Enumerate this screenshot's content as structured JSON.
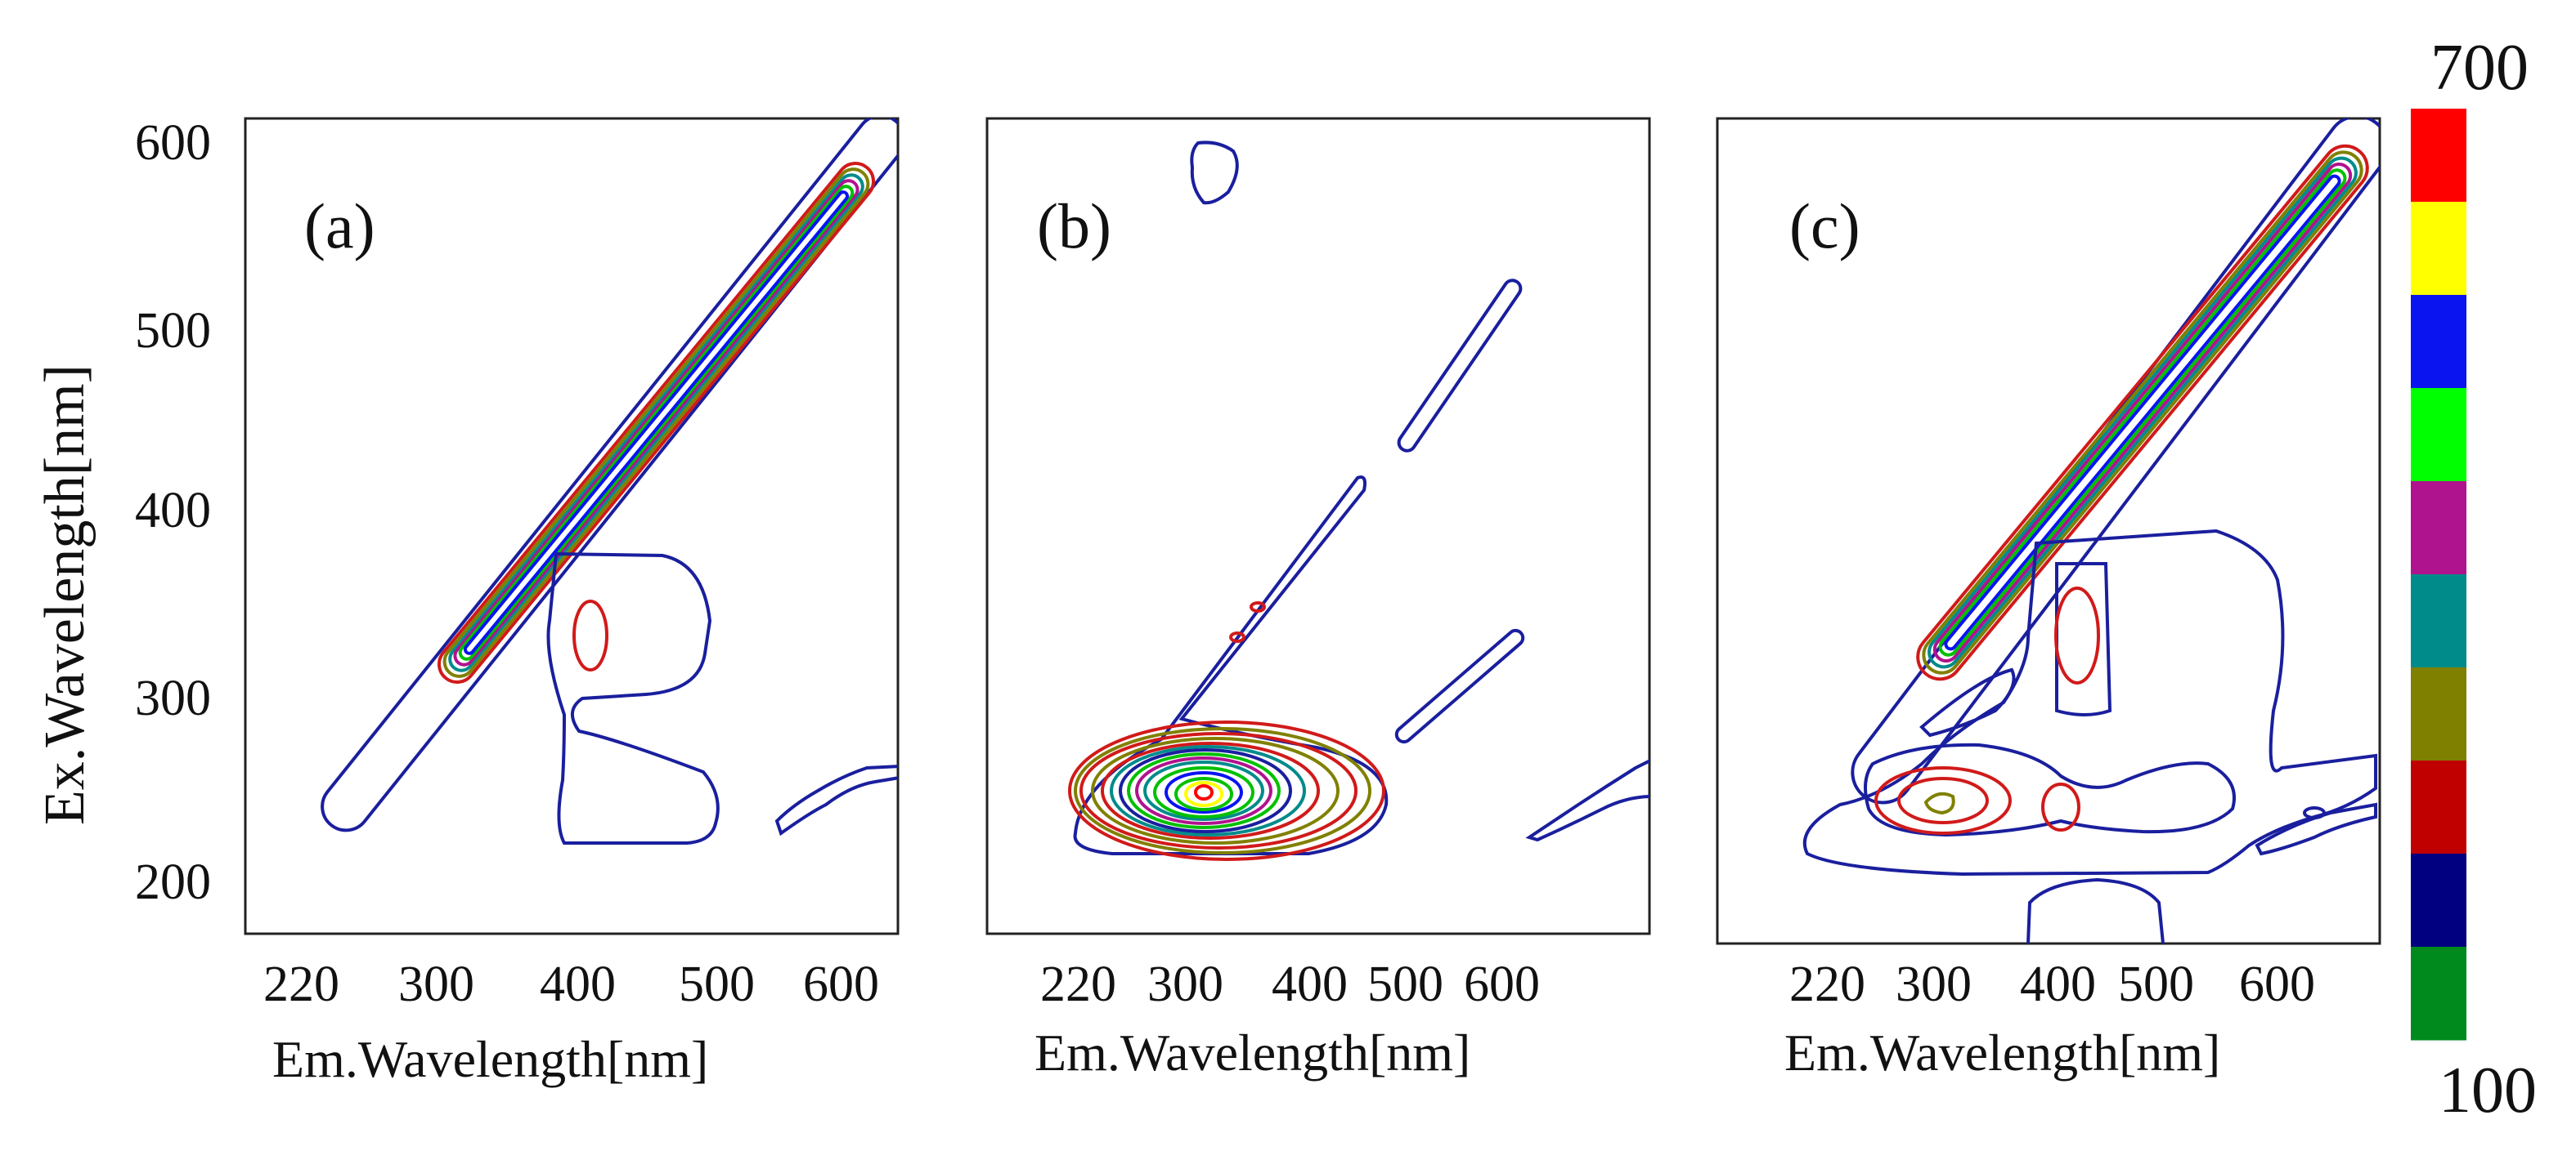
{
  "chart_data": [
    {
      "type": "contour",
      "panel": "(a)",
      "xlabel": "Em.Wavelength[nm]",
      "ylabel": "Ex.Wavelength[nm]",
      "xticks": [
        "220",
        "300",
        "400",
        "500",
        "600"
      ],
      "yticks": [
        "600",
        "500",
        "400",
        "300",
        "200"
      ],
      "features": [
        "Rayleigh scatter diagonal band (Ex = Em)",
        "peak near Ex 330 / Em 410"
      ]
    },
    {
      "type": "contour",
      "panel": "(b)",
      "xlabel": "Em.Wavelength[nm]",
      "xticks": [
        "220",
        "300",
        "400",
        "500",
        "600"
      ],
      "features": [
        "strong peak near Ex 245 / Em 320 (up to 700)",
        "weak diagonal scatter"
      ]
    },
    {
      "type": "contour",
      "panel": "(c)",
      "xlabel": "Em.Wavelength[nm]",
      "xticks": [
        "220",
        "300",
        "400",
        "500",
        "600"
      ],
      "features": [
        "Rayleigh scatter diagonal band",
        "peak near Ex 330 / Em 420",
        "peaks near Ex 245 / Em 300 and Em 420"
      ]
    }
  ],
  "colorbar": {
    "max_label": "700",
    "min_label": "100",
    "colors": [
      "#ff0000",
      "#ffff00",
      "#0a14f0",
      "#00ff00",
      "#b0138e",
      "#008b8b",
      "#808000",
      "#c00000",
      "#000080",
      "#008a1e"
    ]
  },
  "contour_colors": {
    "level1": "#1a1f9e",
    "level2": "#d11a1a",
    "level3": "#808000",
    "level4": "#008b8b",
    "level5": "#b0138e",
    "level6": "#00c000",
    "level7": "#0a14f0",
    "level8": "#ffff00",
    "level9": "#ff0000"
  }
}
